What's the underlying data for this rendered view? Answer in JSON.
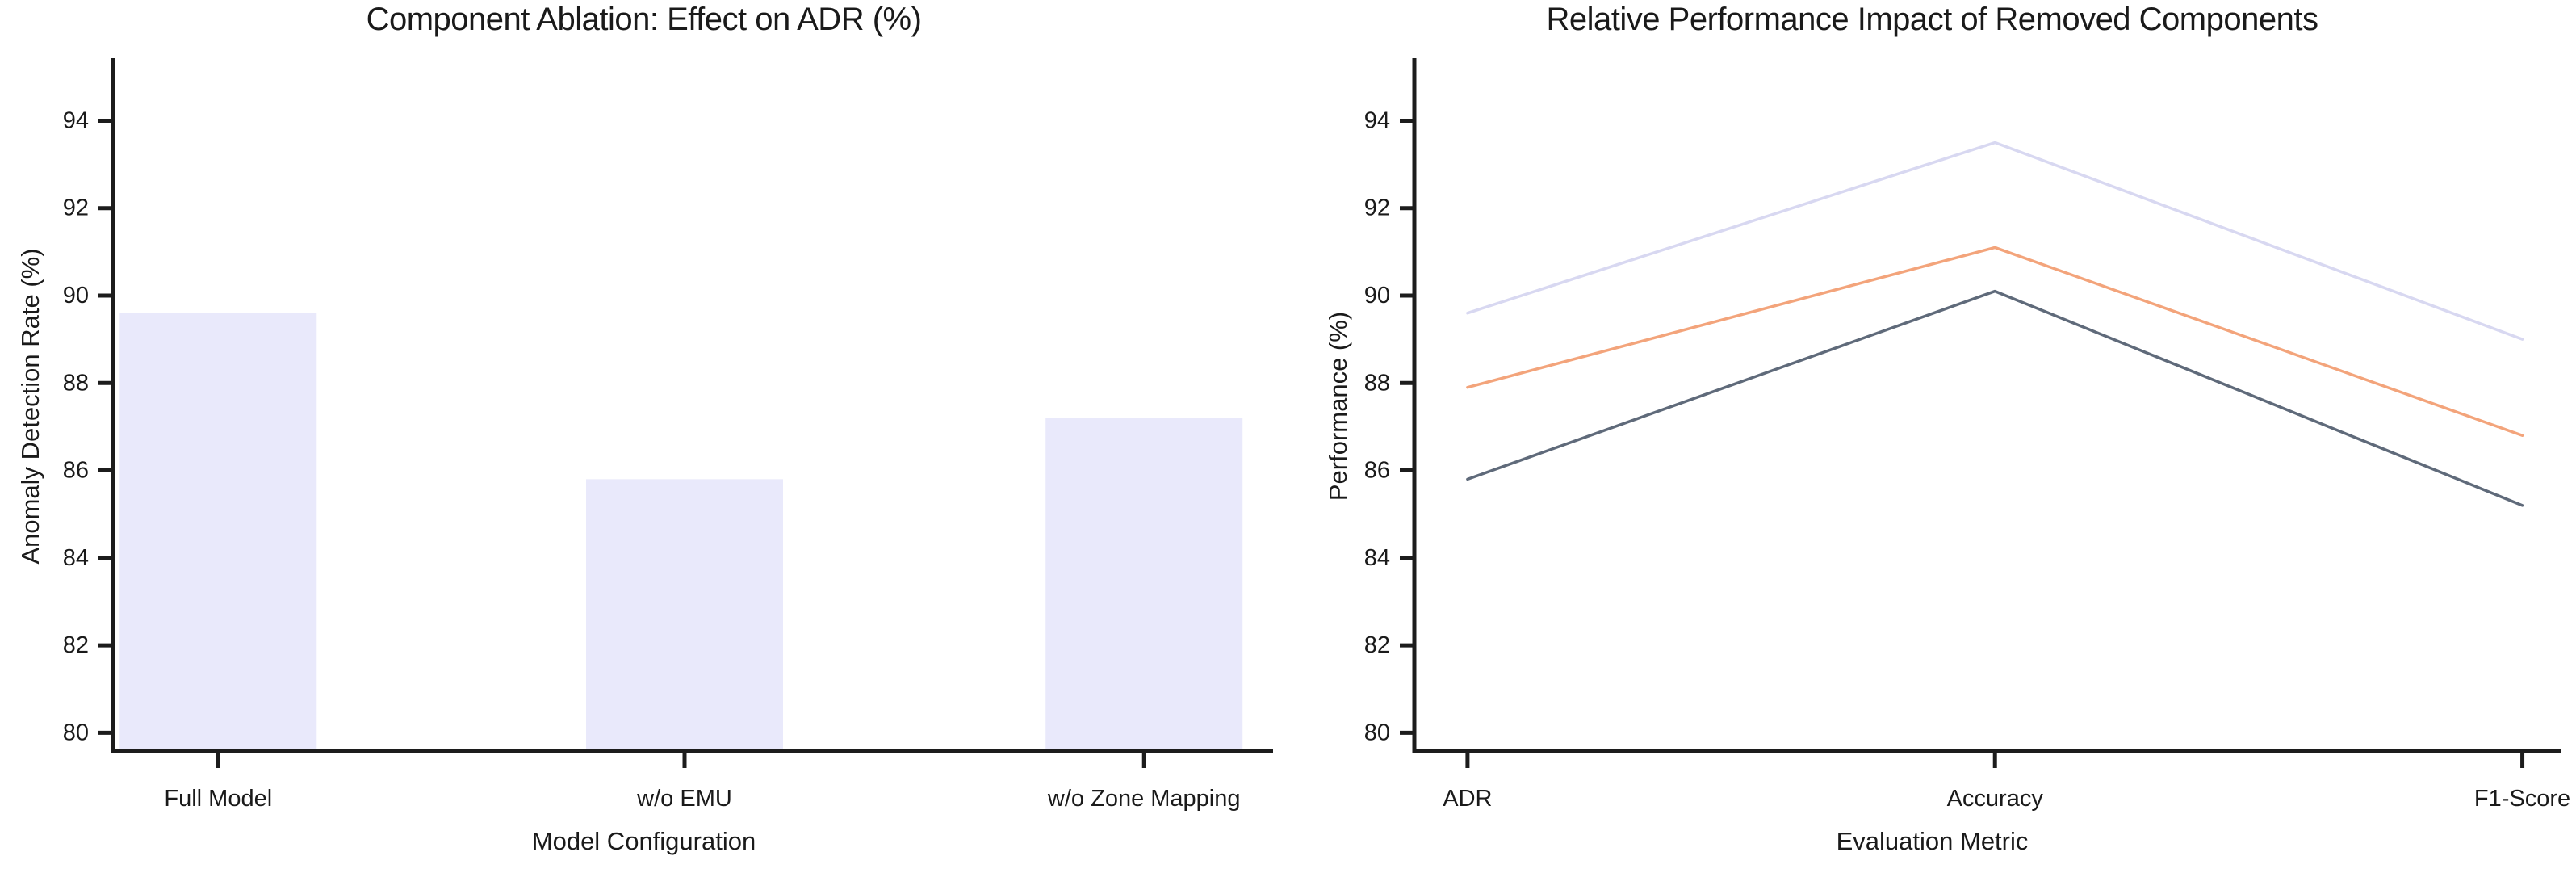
{
  "figure": {
    "background": "#ffffff",
    "axis_color": "#1c1c1c",
    "text_color": "#1a1a1a"
  },
  "chart_data": [
    {
      "type": "bar",
      "title": "Component Ablation: Effect on ADR (%)",
      "xlabel": "Model Configuration",
      "ylabel": "Anomaly Detection Rate (%)",
      "categories": [
        "Full Model",
        "w/o EMU",
        "w/o Zone Mapping"
      ],
      "values": [
        89.6,
        85.8,
        87.2
      ],
      "bar_color": "#e9e9fb",
      "yticks": [
        80,
        82,
        84,
        86,
        88,
        90,
        92,
        94
      ],
      "ylim": [
        79.6,
        95.32
      ],
      "grid": false,
      "legend_position": "none"
    },
    {
      "type": "line",
      "title": "Relative Performance Impact of Removed Components",
      "xlabel": "Evaluation Metric",
      "ylabel": "Performance (%)",
      "categories": [
        "ADR",
        "Accuracy",
        "F1-Score"
      ],
      "series": [
        {
          "name": "series-lavender",
          "color": "#d8d8f1",
          "values": [
            89.6,
            93.5,
            89.0
          ]
        },
        {
          "name": "series-orange",
          "color": "#f3a47b",
          "values": [
            87.9,
            91.1,
            86.8
          ]
        },
        {
          "name": "series-gray",
          "color": "#5f6a7a",
          "values": [
            85.8,
            90.1,
            85.2
          ]
        }
      ],
      "yticks": [
        80,
        82,
        84,
        86,
        88,
        90,
        92,
        94
      ],
      "ylim": [
        79.6,
        95.32
      ],
      "grid": false,
      "legend_position": "none"
    }
  ]
}
